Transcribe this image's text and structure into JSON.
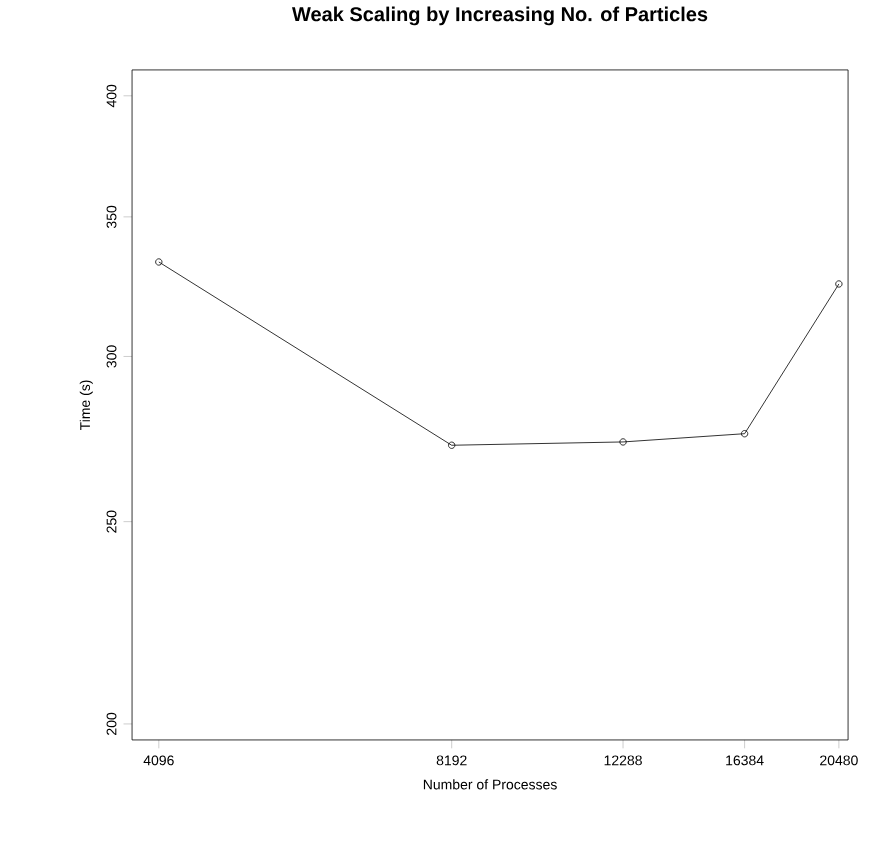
{
  "chart_data": {
    "type": "line",
    "title": "Weak Scaling by Increasing No. of Particles",
    "xlabel": "Number of Processes",
    "ylabel": "Time (s)",
    "x": [
      4096,
      8192,
      12288,
      16384,
      20480
    ],
    "series": [
      {
        "color": "#000000",
        "values": [
          333,
          272,
          273,
          275.5,
          325
        ]
      }
    ],
    "log": "xy",
    "marker": "circle",
    "line_style": "solid",
    "xlim": [
      3845,
      20930
    ],
    "ylim": [
      196.5,
      411.6
    ],
    "xticks": [
      4096,
      8192,
      12288,
      16384,
      20480
    ],
    "yticks": [
      200,
      250,
      300,
      350,
      400
    ]
  }
}
